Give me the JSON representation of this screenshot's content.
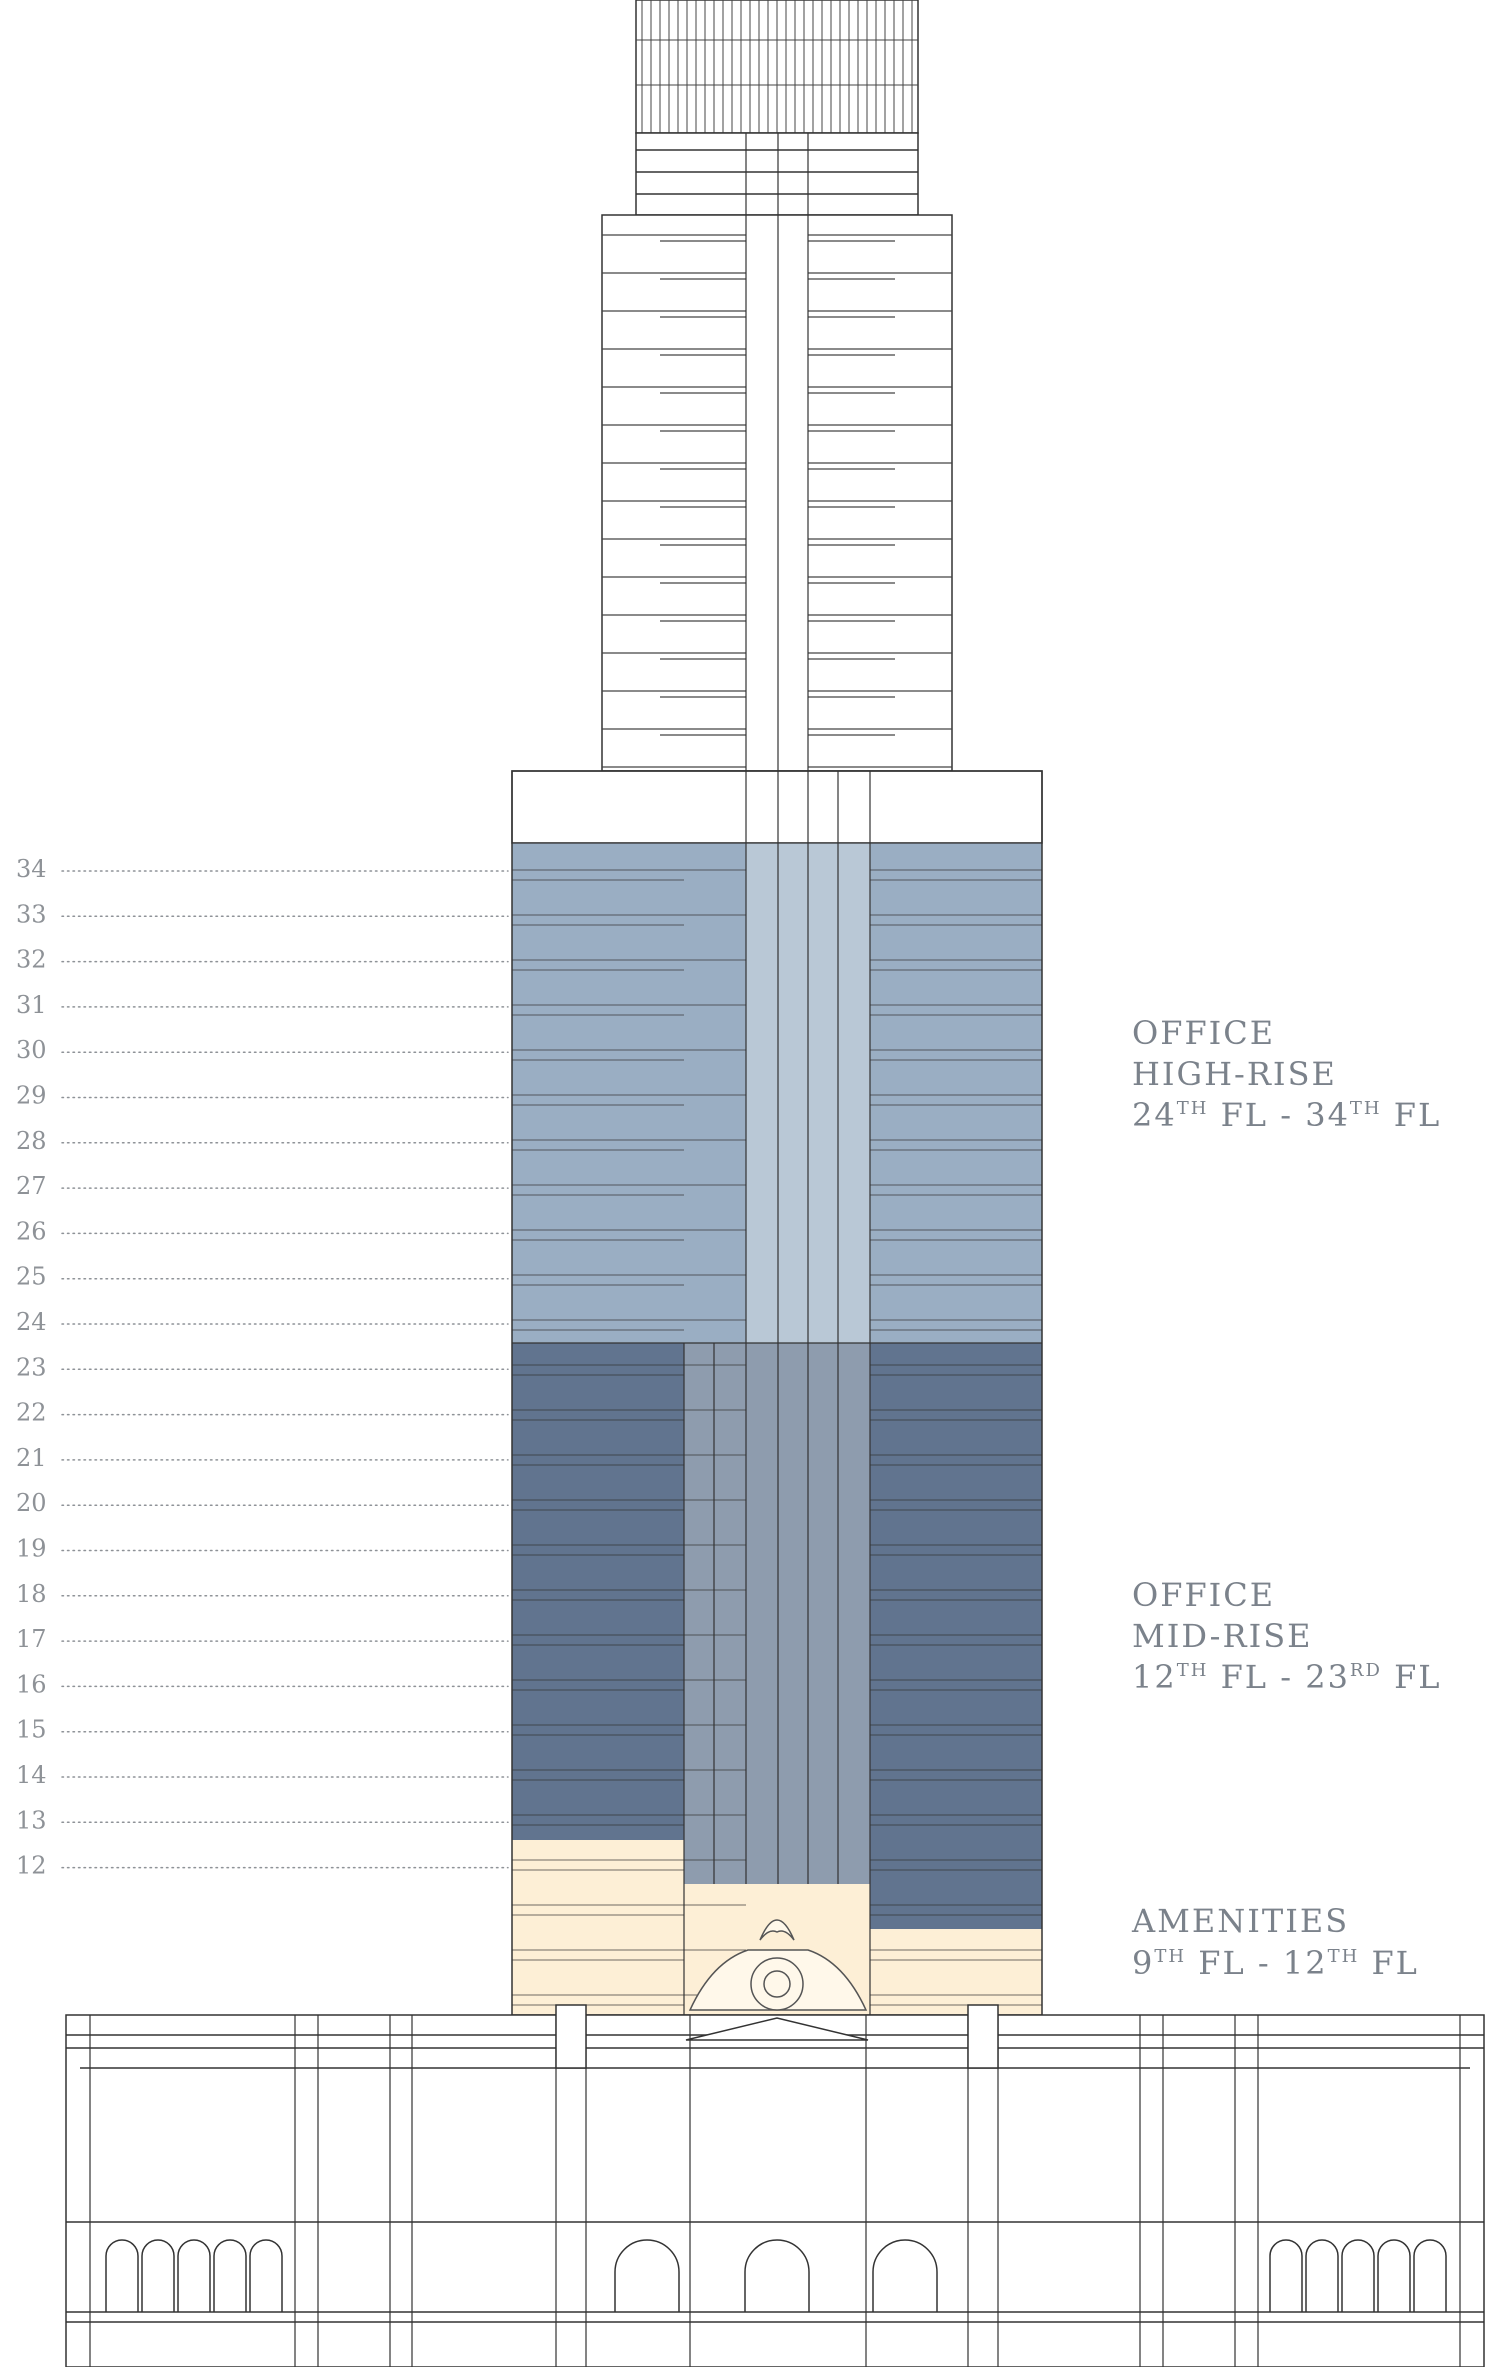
{
  "floors": [
    "34",
    "33",
    "32",
    "31",
    "30",
    "29",
    "28",
    "27",
    "26",
    "25",
    "24",
    "23",
    "22",
    "21",
    "20",
    "19",
    "18",
    "17",
    "16",
    "15",
    "14",
    "13",
    "12"
  ],
  "zones": [
    {
      "id": "office-high-rise",
      "line1": "OFFICE",
      "line2": "HIGH-RISE",
      "range": [
        {
          "t": "24"
        },
        {
          "t": "TH",
          "sup": true
        },
        {
          "t": " FL - 34"
        },
        {
          "t": "TH",
          "sup": true
        },
        {
          "t": " FL"
        }
      ],
      "color": "#9aaec3"
    },
    {
      "id": "office-mid-rise",
      "line1": "OFFICE",
      "line2": "MID-RISE",
      "range": [
        {
          "t": "12"
        },
        {
          "t": "TH",
          "sup": true
        },
        {
          "t": " FL -  23"
        },
        {
          "t": "RD",
          "sup": true
        },
        {
          "t": " FL"
        }
      ],
      "color": "#61748f"
    },
    {
      "id": "amenities",
      "line1": "AMENITIES",
      "line2": "",
      "range": [
        {
          "t": "9"
        },
        {
          "t": "TH",
          "sup": true
        },
        {
          "t": " FL - 12"
        },
        {
          "t": "TH",
          "sup": true
        },
        {
          "t": " FL"
        }
      ],
      "color": "#fdefd6"
    }
  ],
  "colors": {
    "outline": "#333333",
    "high_rise": "#9aaec3",
    "high_rise_core": "#b9c8d6",
    "mid_rise": "#61748f",
    "mid_rise_core": "#8e9cae",
    "amenities": "#fdefd6",
    "label_gray": "#8e9297",
    "zone_text": "#7b828b"
  }
}
